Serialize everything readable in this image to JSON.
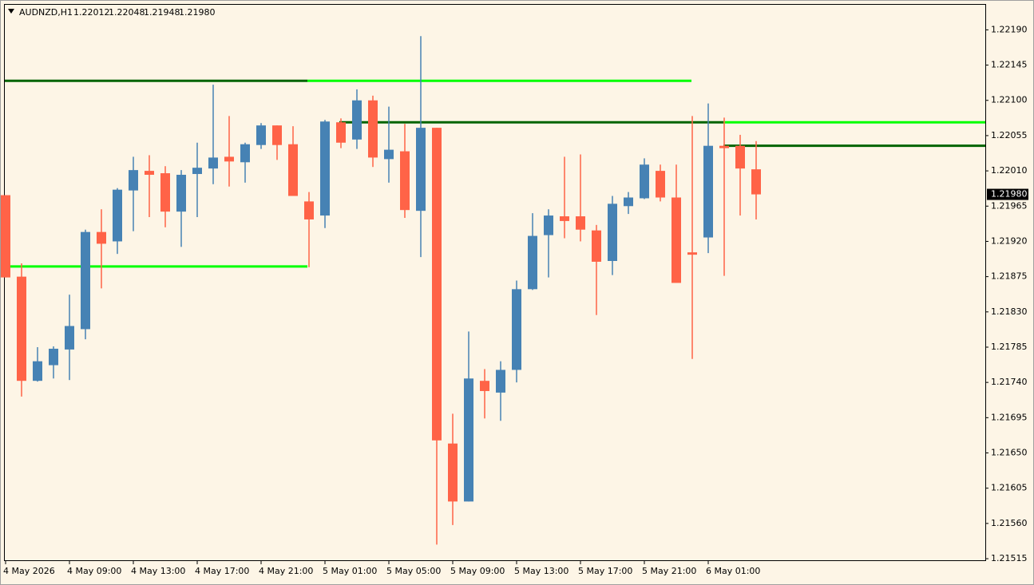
{
  "chart_data": {
    "type": "candlestick",
    "quote": {
      "symbol": "AUDNZD,H1",
      "values": [
        1.22012,
        1.22048,
        1.21948,
        1.2198
      ],
      "value_labels": [
        "1.22012",
        "1.22048",
        "1.21948",
        "1.21980"
      ]
    },
    "categories": [
      "4 May 2026",
      null,
      null,
      null,
      "4 May 09:00",
      null,
      null,
      null,
      "4 May 13:00",
      null,
      null,
      null,
      "4 May 17:00",
      null,
      null,
      null,
      "4 May 21:00",
      null,
      null,
      null,
      "5 May 01:00",
      null,
      null,
      null,
      "5 May 05:00",
      null,
      null,
      null,
      "5 May 09:00",
      null,
      null,
      null,
      "5 May 13:00",
      null,
      null,
      null,
      "5 May 17:00",
      null,
      null,
      null,
      "5 May 21:00",
      null,
      null,
      null,
      "6 May 01:00",
      null,
      null,
      null
    ],
    "open": [
      1.21979,
      1.21875,
      1.21742,
      1.21762,
      1.21782,
      1.21808,
      1.21932,
      1.2192,
      1.21985,
      1.2201,
      1.22007,
      1.21958,
      1.22006,
      1.22013,
      1.22028,
      1.22021,
      1.22043,
      1.22068,
      1.22044,
      1.21971,
      1.21953,
      1.22072,
      1.2205,
      1.221,
      1.22025,
      1.22035,
      1.21959,
      1.22065,
      1.21662,
      1.21588,
      1.21742,
      1.21727,
      1.21756,
      1.21859,
      1.21928,
      1.21952,
      1.21952,
      1.21934,
      1.21895,
      1.21965,
      1.21975,
      1.2201,
      1.21976,
      1.21906,
      1.21925,
      1.22042,
      1.22042,
      1.22012
    ],
    "high": [
      1.21979,
      1.21892,
      1.21785,
      1.21786,
      1.21852,
      1.21935,
      1.21961,
      1.21988,
      1.22028,
      1.2203,
      1.22016,
      1.22011,
      1.22046,
      1.2212,
      1.2208,
      1.22046,
      1.22071,
      1.22068,
      1.22067,
      1.21983,
      1.22075,
      1.22077,
      1.22114,
      1.22106,
      1.22092,
      1.2207,
      1.22182,
      1.22065,
      1.217,
      1.21805,
      1.21757,
      1.21767,
      1.2187,
      1.21956,
      1.21961,
      1.22028,
      1.22031,
      1.21941,
      1.21978,
      1.21983,
      1.22026,
      1.22018,
      1.22018,
      1.2208,
      1.22096,
      1.22078,
      1.22056,
      1.22048
    ],
    "low": [
      1.21874,
      1.21722,
      1.21741,
      1.21745,
      1.21743,
      1.21795,
      1.2186,
      1.21904,
      1.21933,
      1.21951,
      1.21938,
      1.21913,
      1.21951,
      1.21993,
      1.2199,
      1.21995,
      1.22038,
      1.22024,
      1.21978,
      1.21887,
      1.21937,
      1.22039,
      1.22038,
      1.22015,
      1.21995,
      1.2195,
      1.219,
      1.21533,
      1.21558,
      1.21588,
      1.21694,
      1.21691,
      1.2174,
      1.21858,
      1.21874,
      1.21924,
      1.2192,
      1.21826,
      1.21877,
      1.21955,
      1.21974,
      1.21971,
      1.21867,
      1.2177,
      1.21905,
      1.21876,
      1.21953,
      1.21948
    ],
    "close": [
      1.21874,
      1.21742,
      1.21767,
      1.21783,
      1.21812,
      1.21932,
      1.21917,
      1.21986,
      1.22011,
      1.22005,
      1.21958,
      1.22005,
      1.22014,
      1.22027,
      1.22022,
      1.22044,
      1.22068,
      1.22043,
      1.21978,
      1.21948,
      1.22073,
      1.22046,
      1.221,
      1.22027,
      1.22037,
      1.2196,
      1.22065,
      1.21666,
      1.21588,
      1.21745,
      1.21729,
      1.21756,
      1.21859,
      1.21927,
      1.21953,
      1.21946,
      1.21935,
      1.21894,
      1.21968,
      1.21976,
      1.22018,
      1.21976,
      1.21867,
      1.21903,
      1.22042,
      1.22039,
      1.22013,
      1.2198
    ],
    "up_color": "#4682b4",
    "down_color": "#ff6347",
    "levels": [
      {
        "value": 1.22125,
        "color": "#006400"
      },
      {
        "value": 1.22125,
        "color": "#00ff00"
      },
      {
        "value": 1.21888,
        "color": "#00ff00"
      },
      {
        "value": 1.22072,
        "color": "#006400"
      },
      {
        "value": 1.22072,
        "color": "#00ff00"
      },
      {
        "value": 1.22042,
        "color": "#006400"
      }
    ],
    "ylim": [
      1.21513,
      1.22223
    ],
    "yticks": [
      {
        "value": 1.2219,
        "label": "1.22190"
      },
      1.22145,
      {
        "value": 1.221,
        "label": "1.22100"
      },
      1.22055,
      {
        "value": 1.2201,
        "label": "1.22010"
      },
      1.21965,
      {
        "value": 1.2192,
        "label": "1.21920"
      },
      1.21875,
      {
        "value": 1.2183,
        "label": "1.21830"
      },
      1.21785,
      {
        "value": 1.2174,
        "label": "1.21740"
      },
      1.21695,
      {
        "value": 1.2165,
        "label": "1.21650"
      },
      1.21605,
      {
        "value": 1.2156,
        "label": "1.21560"
      },
      1.21515
    ]
  }
}
